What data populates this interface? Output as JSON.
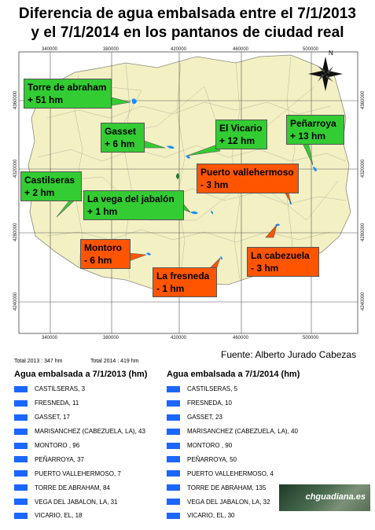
{
  "title_line1": "Diferencia de agua embalsada entre el 7/1/2013",
  "title_line2": "y el 7/1/2014 en los pantanos de ciudad real",
  "map": {
    "north_label": "N",
    "x_ticks": [
      "340000",
      "380000",
      "420000",
      "460000",
      "500000"
    ],
    "y_ticks": [
      "4360000",
      "4320000",
      "4280000",
      "4240000"
    ]
  },
  "callouts": [
    {
      "name": "Torre de abraham",
      "change": "+ 51 hm",
      "color": "green"
    },
    {
      "name": "Gasset",
      "change": "+ 6 hm",
      "color": "green"
    },
    {
      "name": "El Vicario",
      "change": "+ 12 hm",
      "color": "green"
    },
    {
      "name": "Peñarroya",
      "change": "+ 13 hm",
      "color": "green"
    },
    {
      "name": "Castilseras",
      "change": "+ 2 hm",
      "color": "green"
    },
    {
      "name": "La vega del jabalón",
      "change": "+ 1 hm",
      "color": "green"
    },
    {
      "name": "Puerto vallehermoso",
      "change": "- 3 hm",
      "color": "orange"
    },
    {
      "name": "Montoro",
      "change": "- 6 hm",
      "color": "orange"
    },
    {
      "name": "La cabezuela",
      "change": "- 3 hm",
      "color": "orange"
    },
    {
      "name": "La fresneda",
      "change": "- 1 hm",
      "color": "orange"
    }
  ],
  "source": "Fuente: Alberto Jurado Cabezas",
  "total_2013": "Total 2013 : 347 hm",
  "total_2014": "Total 2014 : 419 hm",
  "list_2013": {
    "heading": "Agua embalsada a 7/1/2013 (hm)",
    "rows": [
      "CASTILSERAS,   3",
      "FRESNEDA,   11",
      "GASSET,   17",
      "MARISANCHEZ (CABEZUELA, LA),   43",
      "MONTORO ,   96",
      "PEÑARROYA,   37",
      "PUERTO VALLEHERMOSO,   7",
      "TORRE DE ABRAHAM,   84",
      "VEGA DEL JABALON, LA,   31",
      "VICARIO, EL,   18"
    ]
  },
  "list_2014": {
    "heading": "Agua embalsada a 7/1/2014 (hm)",
    "rows": [
      "CASTILSERAS,   5",
      "FRESNEDA,   10",
      "GASSET,   23",
      "MARISANCHEZ (CABEZUELA, LA),   40",
      "MONTORO ,   90",
      "PEÑARROYA,   50",
      "PUERTO VALLEHERMOSO,   4",
      "TORRE DE ABRAHAM,   135",
      "VEGA DEL JABALON, LA,   32",
      "VICARIO, EL,   30"
    ]
  },
  "logo_text": "chguadiana.es"
}
